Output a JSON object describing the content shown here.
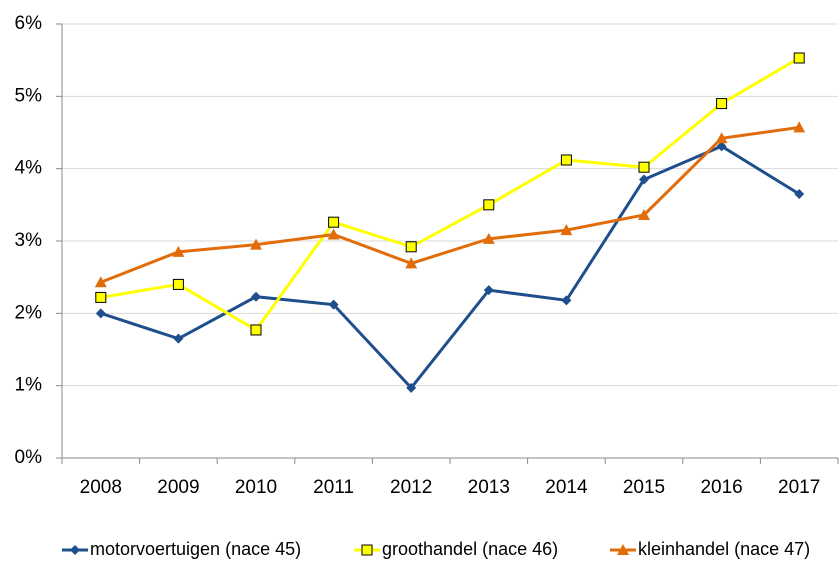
{
  "chart_data": {
    "type": "line",
    "categories": [
      "2008",
      "2009",
      "2010",
      "2011",
      "2012",
      "2013",
      "2014",
      "2015",
      "2016",
      "2017"
    ],
    "series": [
      {
        "name": "motorvoertuigen (nace 45)",
        "color": "#1f4e8c",
        "marker": "diamond",
        "values": [
          2.0,
          1.65,
          2.23,
          2.12,
          0.97,
          2.32,
          2.18,
          3.85,
          4.31,
          3.65
        ]
      },
      {
        "name": "groothandel (nace 46)",
        "color": "#ffff00",
        "marker": "square",
        "values": [
          2.22,
          2.4,
          1.77,
          3.26,
          2.92,
          3.5,
          4.12,
          4.02,
          4.9,
          5.53
        ]
      },
      {
        "name": "kleinhandel (nace 47)",
        "color": "#e36c0a",
        "marker": "triangle",
        "values": [
          2.43,
          2.85,
          2.95,
          3.09,
          2.69,
          3.03,
          3.15,
          3.36,
          4.42,
          4.57
        ]
      }
    ],
    "ylim": [
      0,
      6
    ],
    "yticks": [
      {
        "value": 0,
        "label": "0%"
      },
      {
        "value": 1,
        "label": "1%"
      },
      {
        "value": 2,
        "label": "2%"
      },
      {
        "value": 3,
        "label": "3%"
      },
      {
        "value": 4,
        "label": "4%"
      },
      {
        "value": 5,
        "label": "5%"
      },
      {
        "value": 6,
        "label": "6%"
      }
    ],
    "grid": true,
    "legend": "bottom"
  }
}
